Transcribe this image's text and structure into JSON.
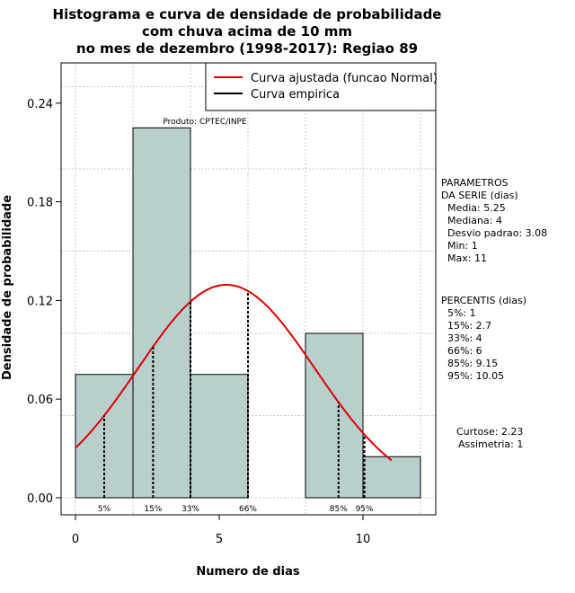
{
  "chart_data": {
    "type": "histogram",
    "title_lines": [
      "Histograma e curva de densidade de probabilidade",
      "com chuva acima de 10 mm",
      "no mes de dezembro (1998-2017): Regiao 89"
    ],
    "xlabel": "Numero de dias",
    "ylabel": "Densidade de probabilidade",
    "xlim": [
      -0.5,
      12.5
    ],
    "ylim": [
      0,
      0.26
    ],
    "xticks": [
      0,
      5,
      10
    ],
    "yticks": [
      0.0,
      0.06,
      0.12,
      0.18,
      0.24
    ],
    "ytick_labels": [
      "0.00",
      "0.06",
      "0.12",
      "0.18",
      "0.24"
    ],
    "grid": true,
    "bins": [
      {
        "from": 0,
        "to": 2,
        "density": 0.075
      },
      {
        "from": 2,
        "to": 4,
        "density": 0.225
      },
      {
        "from": 4,
        "to": 6,
        "density": 0.075
      },
      {
        "from": 6,
        "to": 8,
        "density": 0.0
      },
      {
        "from": 8,
        "to": 10,
        "density": 0.1
      },
      {
        "from": 10,
        "to": 12,
        "density": 0.025
      }
    ],
    "bar_color": "#b8cfce",
    "normal_curve": {
      "mean": 5.25,
      "sd": 3.08,
      "x_from": 0,
      "x_to": 11,
      "color": "#dd0000"
    },
    "percentiles": [
      {
        "label": "5%",
        "x": 1.0
      },
      {
        "label": "15%",
        "x": 2.7
      },
      {
        "label": "33%",
        "x": 4.0
      },
      {
        "label": "66%",
        "x": 6.0
      },
      {
        "label": "85%",
        "x": 9.15
      },
      {
        "label": "95%",
        "x": 10.05
      }
    ],
    "legend": {
      "position": "top-right",
      "entries": [
        {
          "label": "Curva ajustada (funcao Normal)",
          "color": "#dd0000"
        },
        {
          "label": "Curva empirica",
          "color": "#000000"
        }
      ]
    },
    "annotation": "Produto: CPTEC/INPE",
    "side_params": [
      "PARAMETROS",
      "DA SERIE (dias)",
      "Media: 5.25",
      "Mediana: 4",
      "Desvio padrao: 3.08",
      "Min: 1",
      "Max: 11"
    ],
    "side_percentis": [
      "PERCENTIS (dias)",
      "5%: 1",
      "15%: 2.7",
      "33%: 4",
      "66%: 6",
      "85%: 9.15",
      "95%: 10.05"
    ],
    "side_stats": [
      "Curtose: 2.23",
      "Assimetria: 1"
    ]
  }
}
